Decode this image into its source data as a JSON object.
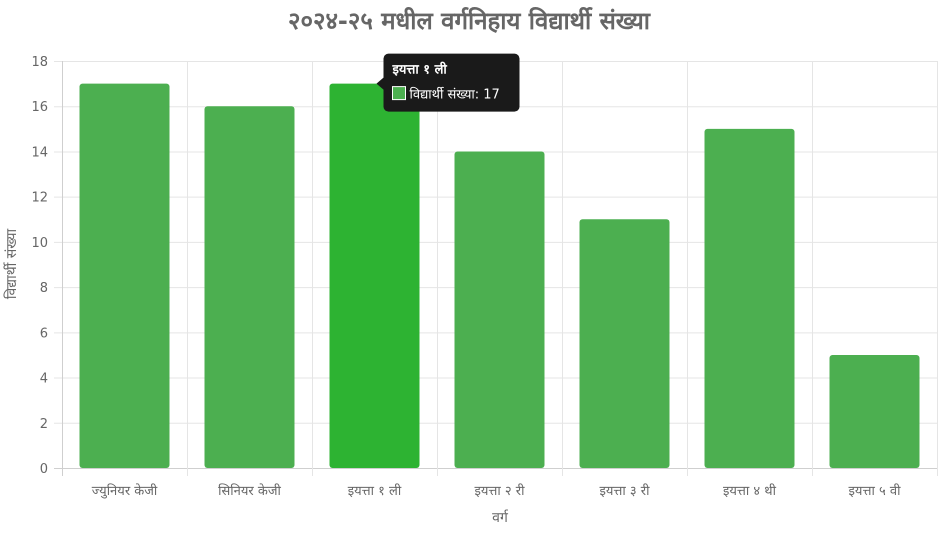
{
  "chart_data": {
    "type": "bar",
    "title": "२०२४-२५ मधील वर्गनिहाय विद्यार्थी संख्या",
    "xlabel": "वर्ग",
    "ylabel": "विद्यार्थी संख्या",
    "categories": [
      "ज्युनियर केजी",
      "सिनियर केजी",
      "इयत्ता १ ली",
      "इयत्ता २ री",
      "इयत्ता ३ री",
      "इयत्ता ४ थी",
      "इयत्ता ५ वी"
    ],
    "series": [
      {
        "name": "विद्यार्थी संख्या",
        "values": [
          17,
          16,
          17,
          14,
          11,
          15,
          5
        ]
      }
    ],
    "ylim": [
      0,
      18
    ],
    "yticks": [
      0,
      2,
      4,
      6,
      8,
      10,
      12,
      14,
      16,
      18
    ],
    "grid": true,
    "colors": {
      "bar": "#4caf50",
      "bar_hover": "#2db332",
      "tooltip_bg": "#1a1a1a"
    },
    "tooltip": {
      "category_index": 2,
      "title": "इयत्ता १ ली",
      "label": "विद्यार्थी संख्या: 17"
    }
  }
}
